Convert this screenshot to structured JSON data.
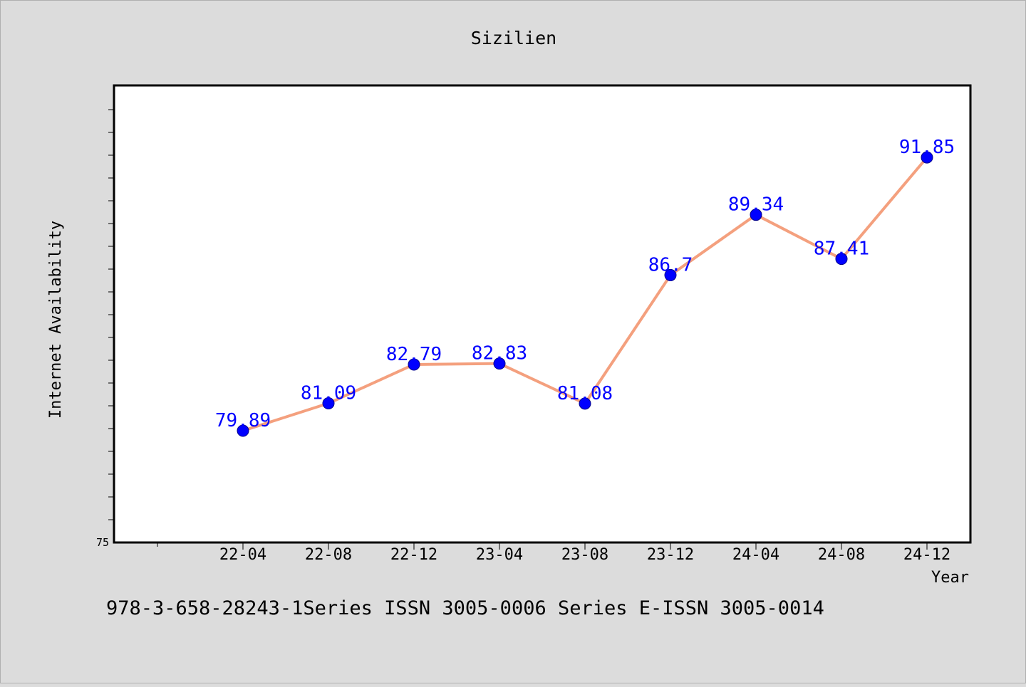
{
  "chart_data": {
    "type": "line",
    "title": "Sizilien",
    "xlabel": "Year",
    "ylabel": "Internet Availability",
    "footer": "978-3-658-28243-1Series ISSN 3005-0006 Series E-ISSN 3005-0014",
    "categories": [
      "22-04",
      "22-08",
      "22-12",
      "23-04",
      "23-08",
      "23-12",
      "24-04",
      "24-08",
      "24-12"
    ],
    "y_tick_label": "75",
    "series": [
      {
        "values": [
          79.89,
          81.09,
          82.79,
          82.83,
          81.08,
          86.7,
          89.34,
          87.41,
          91.85
        ],
        "labels": [
          "79.89",
          "81.09",
          "82.79",
          "82.83",
          "81.08",
          "86.7",
          "89.34",
          "87.41",
          "91.85"
        ]
      }
    ],
    "ylim": [
      75,
      95
    ],
    "grid": false,
    "colors": {
      "line": "#f4a07e",
      "marker": "#0000ff",
      "label": "#0000ff",
      "plot_bg": "#ffffff",
      "page_bg": "#dcdcdc"
    }
  }
}
